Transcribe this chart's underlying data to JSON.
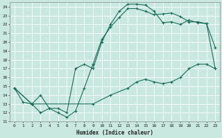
{
  "xlabel": "Humidex (Indice chaleur)",
  "bg_color": "#c8e8e0",
  "grid_color": "#ffffff",
  "line_color": "#1a6b5a",
  "xlim": [
    -0.5,
    23.5
  ],
  "ylim": [
    11,
    24.5
  ],
  "yticks": [
    11,
    12,
    13,
    14,
    15,
    16,
    17,
    18,
    19,
    20,
    21,
    22,
    23,
    24
  ],
  "xticks": [
    0,
    1,
    2,
    3,
    4,
    5,
    6,
    7,
    8,
    9,
    10,
    11,
    12,
    13,
    14,
    15,
    16,
    17,
    18,
    19,
    20,
    21,
    22,
    23
  ],
  "line1_x": [
    0,
    1,
    2,
    3,
    4,
    5,
    6,
    7,
    8,
    9,
    10,
    11,
    12,
    13,
    14,
    15,
    16,
    17,
    18,
    19,
    20,
    21,
    22,
    23
  ],
  "line1_y": [
    14.8,
    13.2,
    13.0,
    12.0,
    12.5,
    12.0,
    11.5,
    12.2,
    14.8,
    17.5,
    20.3,
    21.7,
    22.8,
    23.8,
    23.8,
    23.5,
    23.1,
    23.2,
    23.3,
    22.9,
    22.3,
    22.3,
    22.1,
    19.4
  ],
  "line2_x": [
    0,
    2,
    3,
    4,
    5,
    6,
    7,
    8,
    9,
    10,
    11,
    12,
    13,
    14,
    15,
    16,
    17,
    18,
    19,
    20,
    21,
    22,
    23
  ],
  "line2_y": [
    14.8,
    13.0,
    14.0,
    12.5,
    12.5,
    12.0,
    17.0,
    17.5,
    17.0,
    20.0,
    22.0,
    23.5,
    24.3,
    24.3,
    24.2,
    23.5,
    22.2,
    22.3,
    22.0,
    22.5,
    22.2,
    22.1,
    17.0
  ],
  "line3_x": [
    0,
    2,
    9,
    11,
    13,
    14,
    15,
    16,
    17,
    18,
    19,
    20,
    21,
    22,
    23
  ],
  "line3_y": [
    14.8,
    13.0,
    13.0,
    14.0,
    14.8,
    15.5,
    15.8,
    15.5,
    15.3,
    15.5,
    16.0,
    17.0,
    17.5,
    17.5,
    17.0
  ],
  "tick_fontsize": 4.5,
  "xlabel_fontsize": 5.5,
  "marker_size": 3.0,
  "line_width": 0.8
}
